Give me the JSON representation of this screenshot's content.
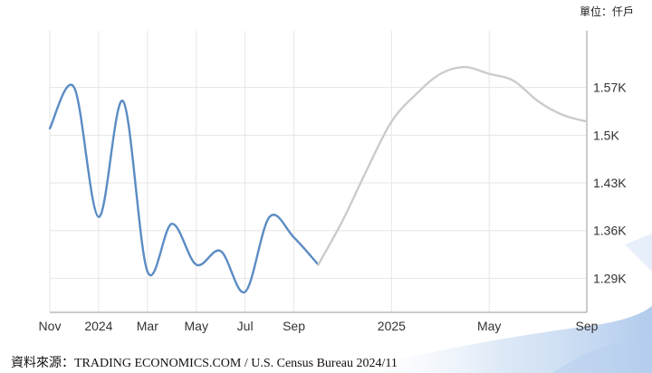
{
  "header": {
    "unit": "單位：仟戶"
  },
  "footer": {
    "source": "資料來源：TRADING ECONOMICS.COM / U.S. Census Bureau 2024/11"
  },
  "colors": {
    "actual": "#5b8cc4",
    "forecast": "#cccccc",
    "grid": "#e6e6e6",
    "axis": "#999999"
  },
  "chart_data": {
    "type": "line",
    "title": "",
    "xlabel": "",
    "ylabel": "",
    "x_ticks": [
      "Nov",
      "2024",
      "Mar",
      "May",
      "Jul",
      "Sep",
      "2025",
      "May",
      "Sep"
    ],
    "y_ticks": [
      "1.57K",
      "1.5K",
      "1.43K",
      "1.36K",
      "1.29K"
    ],
    "ylim": [
      1.24,
      1.64
    ],
    "grid": true,
    "series": [
      {
        "role": "actual",
        "x": [
          "2023-11",
          "2023-12",
          "2024-01",
          "2024-02",
          "2024-03",
          "2024-04",
          "2024-05",
          "2024-06",
          "2024-07",
          "2024-08",
          "2024-09",
          "2024-10"
        ],
        "values": [
          1.51,
          1.57,
          1.38,
          1.55,
          1.3,
          1.37,
          1.31,
          1.33,
          1.27,
          1.38,
          1.35,
          1.31
        ]
      },
      {
        "role": "forecast",
        "x": [
          "2024-10",
          "2024-11",
          "2024-12",
          "2025-01",
          "2025-02",
          "2025-03",
          "2025-04",
          "2025-05",
          "2025-06",
          "2025-07",
          "2025-08",
          "2025-09"
        ],
        "values": [
          1.31,
          1.375,
          1.45,
          1.52,
          1.56,
          1.59,
          1.6,
          1.59,
          1.58,
          1.55,
          1.53,
          1.52
        ]
      }
    ]
  }
}
